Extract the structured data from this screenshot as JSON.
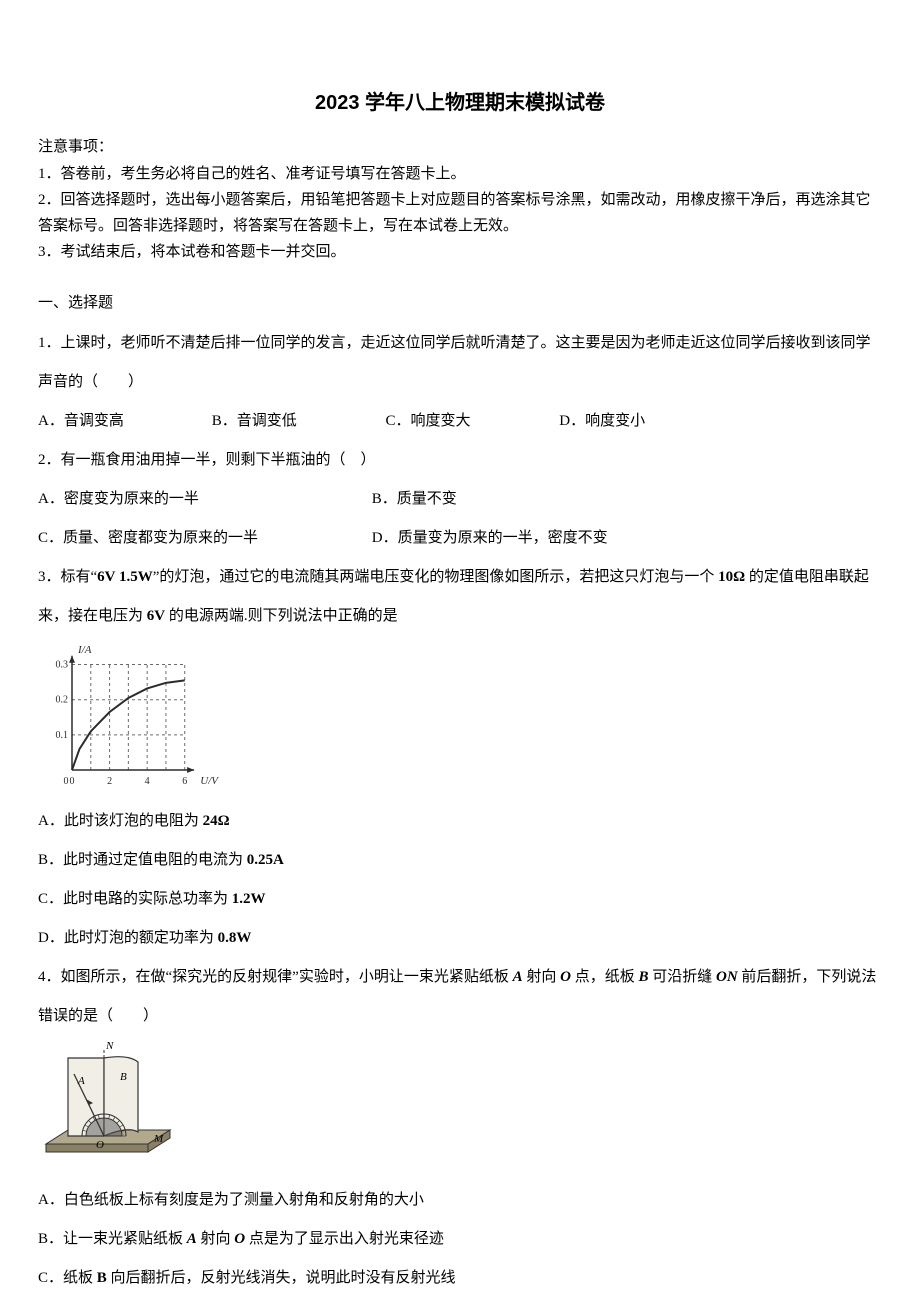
{
  "title": "2023 学年八上物理期末模拟试卷",
  "notice": {
    "header": "注意事项：",
    "items": [
      "1．答卷前，考生务必将自己的姓名、准考证号填写在答题卡上。",
      "2．回答选择题时，选出每小题答案后，用铅笔把答题卡上对应题目的答案标号涂黑，如需改动，用橡皮擦干净后，再选涂其它答案标号。回答非选择题时，将答案写在答题卡上，写在本试卷上无效。",
      "3．考试结束后，将本试卷和答题卡一并交回。"
    ]
  },
  "section1": "一、选择题",
  "q1": {
    "stem": "1．上课时，老师听不清楚后排一位同学的发言，走近这位同学后就听清楚了。这主要是因为老师走近这位同学后接收到该同学声音的（　　）",
    "opts": {
      "A": "A．音调变高",
      "B": "B．音调变低",
      "C": "C．响度变大",
      "D": "D．响度变小"
    }
  },
  "q2": {
    "stem": "2．有一瓶食用油用掉一半，则剩下半瓶油的（　）",
    "opts": {
      "A": "A．密度变为原来的一半",
      "B": "B．质量不变",
      "C": "C．质量、密度都变为原来的一半",
      "D": "D．质量变为原来的一半，密度不变"
    }
  },
  "q3": {
    "stem_pre": "3．标有“",
    "rating": "6V 1.5W",
    "stem_mid1": "”的灯泡，通过它的电流随其两端电压变化的物理图像如图所示，若把这只灯泡与一个 ",
    "ohm": "10Ω",
    "stem_mid2": " 的定值电阻串联起来，接在电压为 ",
    "volt": "6V",
    "stem_post": " 的电源两端.则下列说法中正确的是",
    "chart": {
      "type": "line",
      "width": 184,
      "height": 148,
      "bg": "#fdfdfd",
      "axis_color": "#2b2b2b",
      "grid_color": "#6b6b6b",
      "curve_color": "#2b2b2b",
      "xlabel": "U/V",
      "ylabel": "I/A",
      "xlim": [
        0,
        6.6
      ],
      "ylim": [
        0,
        0.33
      ],
      "xticks": [
        0,
        2,
        4,
        6
      ],
      "yticks": [
        0,
        0.1,
        0.2,
        0.3
      ],
      "ylabels": [
        "0",
        "0.1",
        "0.2",
        "0.3"
      ],
      "xlabels": [
        "0",
        "2",
        "4",
        "6"
      ],
      "curve": [
        [
          0,
          0
        ],
        [
          0.4,
          0.06
        ],
        [
          1,
          0.11
        ],
        [
          2,
          0.165
        ],
        [
          3,
          0.205
        ],
        [
          4,
          0.232
        ],
        [
          5,
          0.248
        ],
        [
          6,
          0.255
        ]
      ],
      "font_size": 10
    },
    "opts": {
      "A_pre": "A．此时该灯泡的电阻为 ",
      "A_val": "24Ω",
      "B_pre": "B．此时通过定值电阻的电流为 ",
      "B_val": "0.25A",
      "C_pre": "C．此时电路的实际总功率为 ",
      "C_val": "1.2W",
      "D_pre": "D．此时灯泡的额定功率为 ",
      "D_val": "0.8W"
    }
  },
  "q4": {
    "stem_pre": "4．如图所示，在做“探究光的反射规律”实验时，小明让一束光紧贴纸板 ",
    "A": "A",
    "mid1": " 射向 ",
    "O": "O",
    "mid2": " 点，纸板 ",
    "B": "B",
    "mid3": " 可沿折缝 ",
    "ON": "ON",
    "stem_post": " 前后翻折，下列说法错误的是（　　）",
    "fig": {
      "width": 140,
      "height": 128,
      "board_color": "#f1eee6",
      "base_color": "#b2a98c",
      "base_shadow": "#8a8066",
      "line_color": "#333333",
      "dash_color": "#333333",
      "labels": {
        "N": "N",
        "A": "A",
        "B": "B",
        "O": "O",
        "M": "M"
      }
    },
    "opts": {
      "A": "A．白色纸板上标有刻度是为了测量入射角和反射角的大小",
      "B_pre": "B．让一束光紧贴纸板 ",
      "B_A": "A",
      "B_mid": " 射向 ",
      "B_O": "O",
      "B_post": " 点是为了显示出入射光束径迹",
      "C_pre": "C．纸板 ",
      "C_B": "B",
      "C_post": " 向后翻折后，反射光线消失，说明此时没有反射光线"
    }
  }
}
